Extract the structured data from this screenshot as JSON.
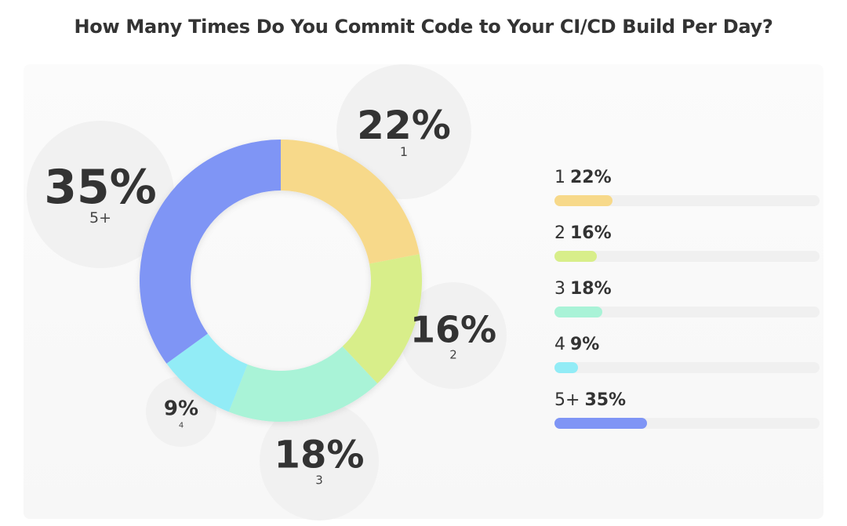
{
  "chart_data": {
    "type": "pie",
    "title": "How Many Times Do You Commit Code to Your CI/CD Build Per Day?",
    "categories": [
      "1",
      "2",
      "3",
      "4",
      "5+"
    ],
    "values": [
      22,
      16,
      18,
      9,
      35
    ],
    "value_labels": [
      "22%",
      "16%",
      "18%",
      "9%",
      "35%"
    ],
    "colors": [
      "#f7d98a",
      "#d8ee8a",
      "#a9f3d7",
      "#92ecf6",
      "#7f95f5"
    ],
    "legend_position": "right"
  }
}
